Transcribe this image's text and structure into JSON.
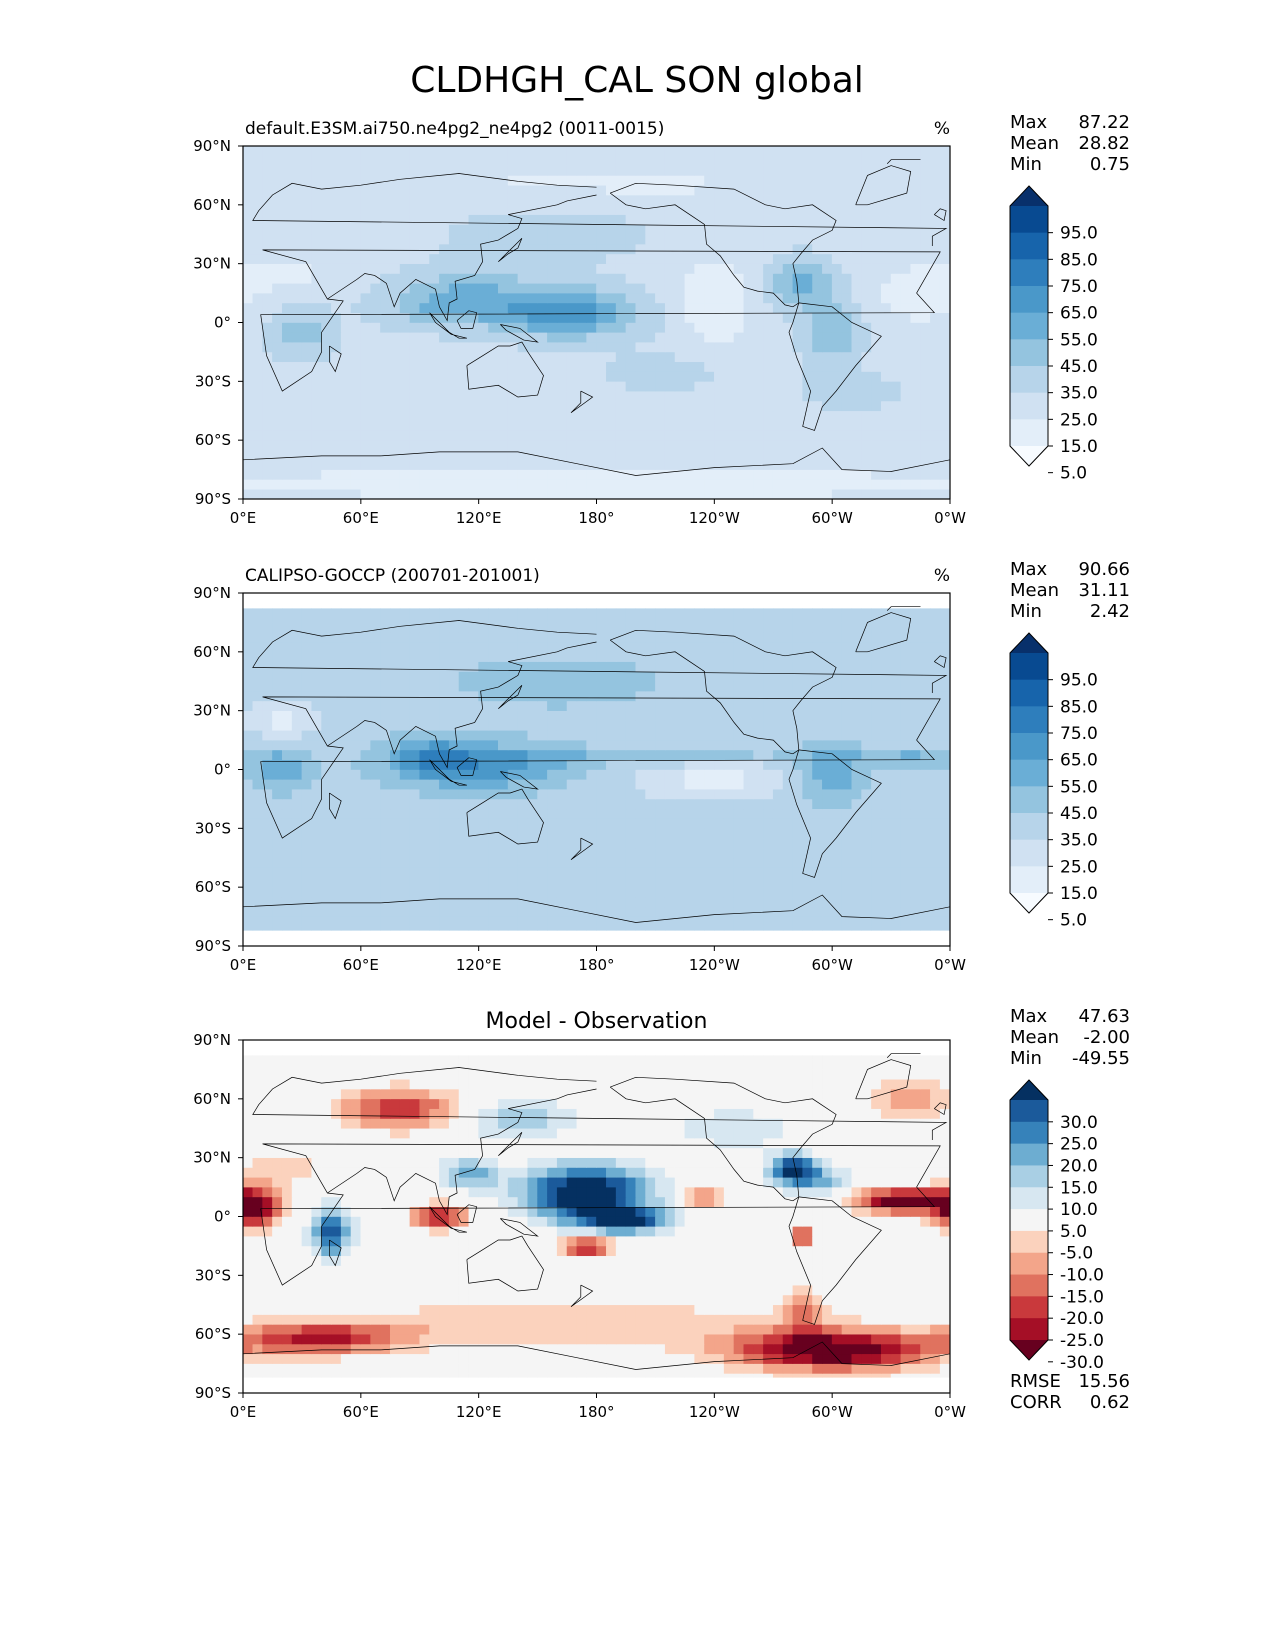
{
  "figure": {
    "title": "CLDHGH_CAL SON global"
  },
  "chart_data": [
    {
      "type": "heatmap",
      "panel_id": "model",
      "title": "",
      "left_label": "default.E3SM.ai750.ne4pg2_ne4pg2 (0011-0015)",
      "units": "%",
      "stats": [
        {
          "label": "Max",
          "value": "87.22"
        },
        {
          "label": "Mean",
          "value": "28.82"
        },
        {
          "label": "Min",
          "value": "0.75"
        }
      ],
      "colorbar": {
        "levels": [
          0,
          5,
          15,
          25,
          35,
          45,
          55,
          65,
          75,
          85,
          95,
          100
        ],
        "tick_labels": [
          "95.0",
          "85.0",
          "75.0",
          "65.0",
          "55.0",
          "45.0",
          "35.0",
          "25.0",
          "15.0",
          "5.0"
        ],
        "colors": [
          "#f7fbff",
          "#e3eef9",
          "#d0e1f2",
          "#b7d4ea",
          "#94c4df",
          "#6aaed6",
          "#4a98c9",
          "#2e7ebc",
          "#1764ab",
          "#084a91",
          "#08306b"
        ],
        "extend": "both"
      },
      "xlabel": "",
      "ylabel": "",
      "xlim": [
        0,
        360
      ],
      "ylim": [
        -90,
        90
      ],
      "xticks": [
        "0°E",
        "60°E",
        "120°E",
        "180°",
        "120°W",
        "60°W",
        "0°W"
      ],
      "yticks": [
        "90°N",
        "60°N",
        "30°N",
        "0°",
        "30°S",
        "60°S",
        "90°S"
      ],
      "grid": false,
      "base_value": 22,
      "features": [
        {
          "lon": 165,
          "lat": 5,
          "rlon": 35,
          "rlat": 12,
          "value": 62
        },
        {
          "lon": 118,
          "lat": 15,
          "rlon": 35,
          "rlat": 14,
          "value": 40
        },
        {
          "lon": 100,
          "lat": 8,
          "rlon": 30,
          "rlat": 10,
          "value": 38
        },
        {
          "lon": 285,
          "lat": 20,
          "rlon": 16,
          "rlat": 12,
          "value": 48
        },
        {
          "lon": 300,
          "lat": -5,
          "rlon": 14,
          "rlat": 16,
          "value": 45
        },
        {
          "lon": 30,
          "lat": -5,
          "rlon": 16,
          "rlat": 12,
          "value": 40
        },
        {
          "lon": 155,
          "lat": 45,
          "rlon": 45,
          "rlat": 14,
          "value": 32
        },
        {
          "lon": 215,
          "lat": -25,
          "rlon": 30,
          "rlat": 10,
          "value": 30
        },
        {
          "lon": 310,
          "lat": -35,
          "rlon": 25,
          "rlat": 10,
          "value": 30
        },
        {
          "lon": 240,
          "lat": 10,
          "rlon": 18,
          "rlat": 22,
          "value": 5
        },
        {
          "lon": 345,
          "lat": 15,
          "rlon": 20,
          "rlat": 15,
          "value": 6
        },
        {
          "lon": 20,
          "lat": 25,
          "rlon": 18,
          "rlat": 8,
          "value": 8
        },
        {
          "lon": 180,
          "lat": -62,
          "rlon": 200,
          "rlat": 8,
          "value": 25
        },
        {
          "lon": 180,
          "lat": 70,
          "rlon": 200,
          "rlat": 10,
          "value": 14
        },
        {
          "lon": 180,
          "lat": -82,
          "rlon": 200,
          "rlat": 8,
          "value": 6
        }
      ]
    },
    {
      "type": "heatmap",
      "panel_id": "obs",
      "title": "",
      "left_label": "CALIPSO-GOCCP (200701-201001)",
      "units": "%",
      "stats": [
        {
          "label": "Max",
          "value": "90.66"
        },
        {
          "label": "Mean",
          "value": "31.11"
        },
        {
          "label": "Min",
          "value": "2.42"
        }
      ],
      "colorbar": {
        "levels": [
          0,
          5,
          15,
          25,
          35,
          45,
          55,
          65,
          75,
          85,
          95,
          100
        ],
        "tick_labels": [
          "95.0",
          "85.0",
          "75.0",
          "65.0",
          "55.0",
          "45.0",
          "35.0",
          "25.0",
          "15.0",
          "5.0"
        ],
        "colors": [
          "#f7fbff",
          "#e3eef9",
          "#d0e1f2",
          "#b7d4ea",
          "#94c4df",
          "#6aaed6",
          "#4a98c9",
          "#2e7ebc",
          "#1764ab",
          "#084a91",
          "#08306b"
        ],
        "extend": "both"
      },
      "xlabel": "",
      "ylabel": "",
      "xlim": [
        0,
        360
      ],
      "ylim": [
        -90,
        90
      ],
      "xticks": [
        "0°E",
        "60°E",
        "120°E",
        "180°",
        "120°W",
        "60°W",
        "0°W"
      ],
      "yticks": [
        "90°N",
        "60°N",
        "30°N",
        "0°",
        "30°S",
        "60°S",
        "90°S"
      ],
      "grid": false,
      "data_lat_range": [
        -82,
        82
      ],
      "base_value": 30,
      "features": [
        {
          "lon": 120,
          "lat": 2,
          "rlon": 45,
          "rlat": 12,
          "value": 62
        },
        {
          "lon": 95,
          "lat": 8,
          "rlon": 20,
          "rlat": 10,
          "value": 48
        },
        {
          "lon": 20,
          "lat": 0,
          "rlon": 15,
          "rlat": 10,
          "value": 55
        },
        {
          "lon": 300,
          "lat": -2,
          "rlon": 16,
          "rlat": 14,
          "value": 55
        },
        {
          "lon": 210,
          "lat": 7,
          "rlon": 80,
          "rlat": 4,
          "value": 42
        },
        {
          "lon": 340,
          "lat": 7,
          "rlon": 25,
          "rlat": 5,
          "value": 45
        },
        {
          "lon": 240,
          "lat": -5,
          "rlon": 40,
          "rlat": 10,
          "value": 12
        },
        {
          "lon": 20,
          "lat": 25,
          "rlon": 20,
          "rlat": 8,
          "value": 12
        },
        {
          "lon": 160,
          "lat": 45,
          "rlon": 60,
          "rlat": 15,
          "value": 40
        },
        {
          "lon": 180,
          "lat": -45,
          "rlon": 200,
          "rlat": 12,
          "value": 34
        }
      ]
    },
    {
      "type": "heatmap",
      "panel_id": "diff",
      "title": "Model - Observation",
      "left_label": "",
      "units": "",
      "stats": [
        {
          "label": "Max",
          "value": "47.63"
        },
        {
          "label": "Mean",
          "value": "-2.00"
        },
        {
          "label": "Min",
          "value": "-49.55"
        }
      ],
      "bottom_stats": [
        {
          "label": "RMSE",
          "value": "15.56"
        },
        {
          "label": "CORR",
          "value": "0.62"
        }
      ],
      "colorbar": {
        "levels": [
          -35,
          -30,
          -25,
          -20,
          -15,
          -10,
          -5,
          5,
          10,
          15,
          20,
          25,
          30,
          35
        ],
        "tick_labels": [
          "30.0",
          "25.0",
          "20.0",
          "15.0",
          "10.0",
          "5.0",
          "-5.0",
          "-10.0",
          "-15.0",
          "-20.0",
          "-25.0",
          "-30.0"
        ],
        "colors": [
          "#67001f",
          "#a50f26",
          "#c9393c",
          "#e0725f",
          "#f3a58a",
          "#fbd2bd",
          "#f5f5f5",
          "#d7e7f1",
          "#a9cfe4",
          "#6dadd1",
          "#3682ba",
          "#1b5a9b",
          "#053061"
        ],
        "extend": "both"
      },
      "xlabel": "",
      "ylabel": "",
      "xlim": [
        0,
        360
      ],
      "ylim": [
        -90,
        90
      ],
      "xticks": [
        "0°E",
        "60°E",
        "120°E",
        "180°",
        "120°W",
        "60°W",
        "0°W"
      ],
      "yticks": [
        "90°N",
        "60°N",
        "30°N",
        "0°",
        "30°S",
        "60°S",
        "90°S"
      ],
      "grid": false,
      "data_lat_range": [
        -82,
        82
      ],
      "base_value": 0,
      "features": [
        {
          "lon": 175,
          "lat": 12,
          "rlon": 32,
          "rlat": 14,
          "value": 40
        },
        {
          "lon": 195,
          "lat": -2,
          "rlon": 22,
          "rlat": 6,
          "value": 30
        },
        {
          "lon": 115,
          "lat": 22,
          "rlon": 15,
          "rlat": 8,
          "value": 18
        },
        {
          "lon": 280,
          "lat": 24,
          "rlon": 12,
          "rlat": 8,
          "value": 32
        },
        {
          "lon": 295,
          "lat": 18,
          "rlon": 15,
          "rlat": 8,
          "value": 14
        },
        {
          "lon": 45,
          "lat": -8,
          "rlon": 10,
          "rlat": 12,
          "value": 30
        },
        {
          "lon": 140,
          "lat": 50,
          "rlon": 30,
          "rlat": 10,
          "value": 14
        },
        {
          "lon": 250,
          "lat": 45,
          "rlon": 30,
          "rlat": 10,
          "value": 10
        },
        {
          "lon": 5,
          "lat": 5,
          "rlon": 14,
          "rlat": 10,
          "value": -38
        },
        {
          "lon": 335,
          "lat": 8,
          "rlon": 22,
          "rlat": 6,
          "value": -38
        },
        {
          "lon": 100,
          "lat": 0,
          "rlon": 14,
          "rlat": 6,
          "value": -28
        },
        {
          "lon": 175,
          "lat": -15,
          "rlon": 14,
          "rlat": 5,
          "value": -28
        },
        {
          "lon": 285,
          "lat": -10,
          "rlon": 6,
          "rlat": 6,
          "value": -28
        },
        {
          "lon": 80,
          "lat": 55,
          "rlon": 30,
          "rlat": 10,
          "value": -25
        },
        {
          "lon": 300,
          "lat": -68,
          "rlon": 50,
          "rlat": 10,
          "value": -38
        },
        {
          "lon": 40,
          "lat": -62,
          "rlon": 40,
          "rlat": 8,
          "value": -25
        },
        {
          "lon": 160,
          "lat": -55,
          "rlon": 120,
          "rlat": 12,
          "value": -10
        },
        {
          "lon": 20,
          "lat": 25,
          "rlon": 25,
          "rlat": 10,
          "value": -8
        },
        {
          "lon": 340,
          "lat": 60,
          "rlon": 20,
          "rlat": 10,
          "value": -15
        },
        {
          "lon": 235,
          "lat": 10,
          "rlon": 12,
          "rlat": 5,
          "value": -18
        },
        {
          "lon": 285,
          "lat": -50,
          "rlon": 10,
          "rlat": 12,
          "value": -15
        }
      ]
    }
  ]
}
